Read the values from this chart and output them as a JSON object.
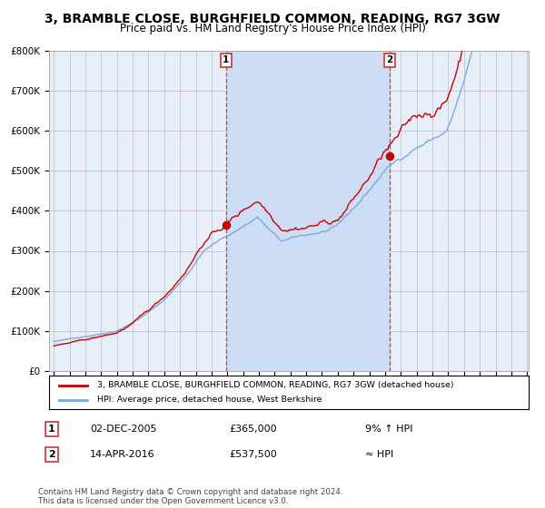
{
  "title": "3, BRAMBLE CLOSE, BURGHFIELD COMMON, READING, RG7 3GW",
  "subtitle": "Price paid vs. HM Land Registry's House Price Index (HPI)",
  "title_fontsize": 10,
  "subtitle_fontsize": 8.5,
  "ylim": [
    0,
    800000
  ],
  "yticks": [
    0,
    100000,
    200000,
    300000,
    400000,
    500000,
    600000,
    700000,
    800000
  ],
  "x_start_year": 1995,
  "x_end_year": 2025,
  "sale1_year": 2005.92,
  "sale1_value": 365000,
  "sale1_date": "02-DEC-2005",
  "sale1_price": "£365,000",
  "sale1_hpi": "9% ↑ HPI",
  "sale2_year": 2016.29,
  "sale2_value": 537500,
  "sale2_date": "14-APR-2016",
  "sale2_price": "£537,500",
  "sale2_hpi": "≈ HPI",
  "hpi_line_color": "#7aaadd",
  "price_line_color": "#cc0000",
  "dot_color": "#cc0000",
  "vline_color": "#ee3333",
  "shade_color": "#ccddf5",
  "background_color": "#e8eef8",
  "grid_color": "#bbbbcc",
  "legend_label1": "3, BRAMBLE CLOSE, BURGHFIELD COMMON, READING, RG7 3GW (detached house)",
  "legend_label2": "HPI: Average price, detached house, West Berkshire",
  "footer": "Contains HM Land Registry data © Crown copyright and database right 2024.\nThis data is licensed under the Open Government Licence v3.0."
}
